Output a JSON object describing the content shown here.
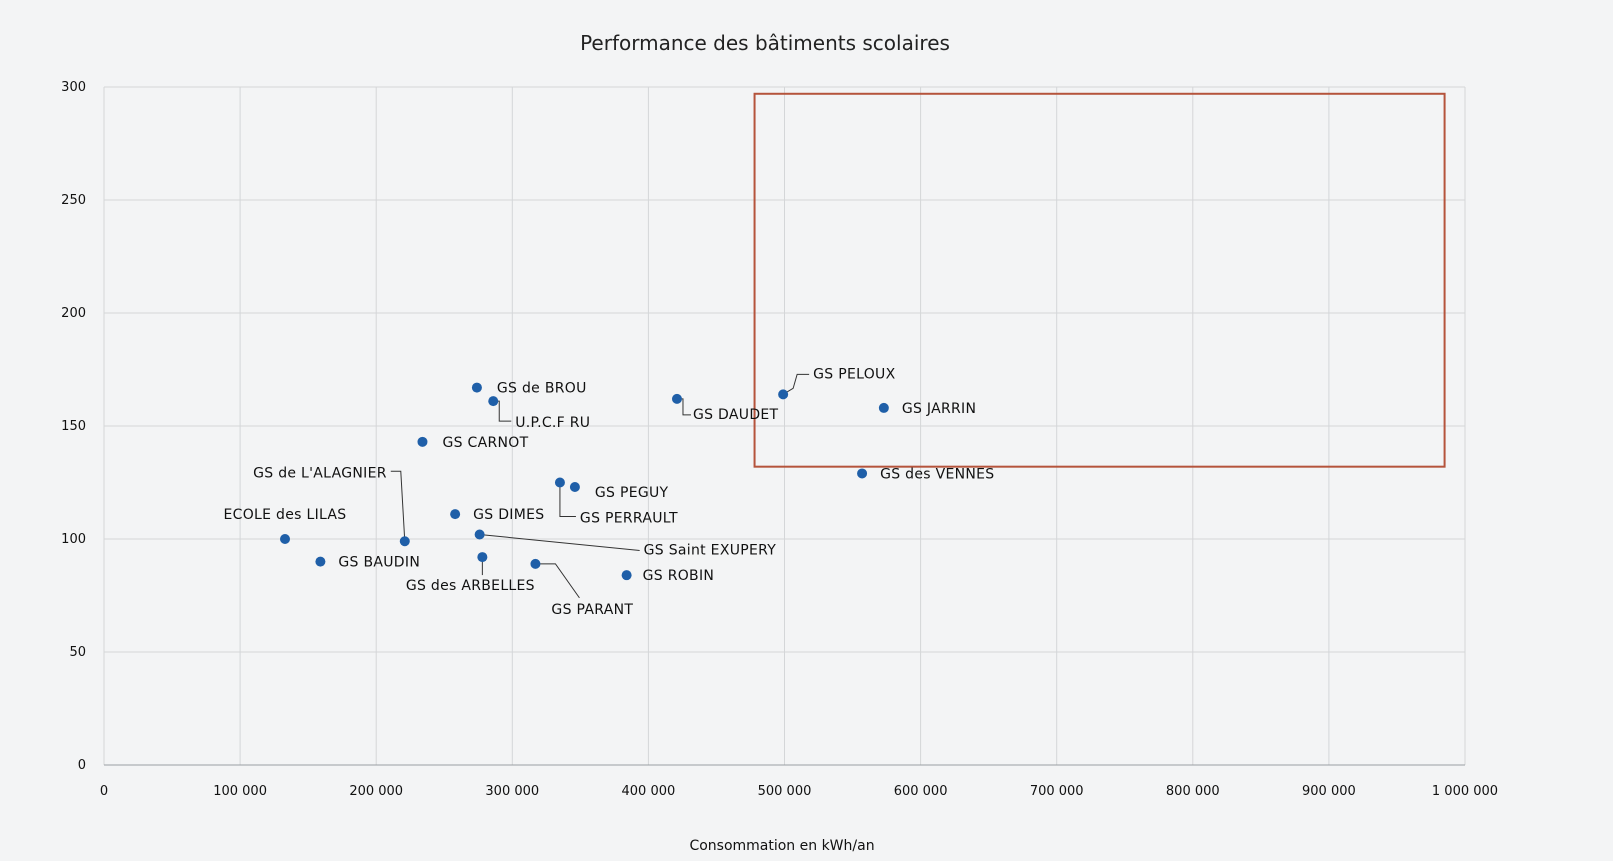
{
  "chart_data": {
    "type": "scatter",
    "title": "Performance des bâtiments scolaires",
    "xlabel": "Consommation en kWh/an",
    "ylabel": "",
    "xlim": [
      0,
      1000000
    ],
    "ylim": [
      0,
      300
    ],
    "x_ticks": [
      {
        "value": 0,
        "label": "0"
      },
      {
        "value": 100000,
        "label": "100 000"
      },
      {
        "value": 200000,
        "label": "200 000"
      },
      {
        "value": 300000,
        "label": "300 000"
      },
      {
        "value": 400000,
        "label": "400 000"
      },
      {
        "value": 500000,
        "label": "500 000"
      },
      {
        "value": 600000,
        "label": "600 000"
      },
      {
        "value": 700000,
        "label": "700 000"
      },
      {
        "value": 800000,
        "label": "800 000"
      },
      {
        "value": 900000,
        "label": "900 000"
      },
      {
        "value": 1000000,
        "label": "1 000 000"
      }
    ],
    "y_ticks": [
      {
        "value": 0,
        "label": "0"
      },
      {
        "value": 50,
        "label": "50"
      },
      {
        "value": 100,
        "label": "100"
      },
      {
        "value": 150,
        "label": "150"
      },
      {
        "value": 200,
        "label": "200"
      },
      {
        "value": 250,
        "label": "250"
      },
      {
        "value": 300,
        "label": "300"
      }
    ],
    "grid": true,
    "legend": false,
    "marker_color": "#1f5fa8",
    "highlight_box": {
      "x": [
        478000,
        985000
      ],
      "y": [
        132,
        297
      ],
      "color": "#b5543c"
    },
    "points": [
      {
        "label": "GS de BROU",
        "x": 274000,
        "y": 167
      },
      {
        "label": "U.P.C.F RU",
        "x": 286000,
        "y": 161
      },
      {
        "label": "GS CARNOT",
        "x": 234000,
        "y": 143
      },
      {
        "label": "GS DAUDET",
        "x": 421000,
        "y": 162
      },
      {
        "label": "GS PELOUX",
        "x": 499000,
        "y": 164
      },
      {
        "label": "GS JARRIN",
        "x": 573000,
        "y": 158
      },
      {
        "label": "GS des VENNES",
        "x": 557000,
        "y": 129
      },
      {
        "label": "GS PEGUY",
        "x": 346000,
        "y": 123
      },
      {
        "label": "GS PERRAULT",
        "x": 335000,
        "y": 125
      },
      {
        "label": "GS DIMES",
        "x": 258000,
        "y": 111
      },
      {
        "label": "GS de L'ALAGNIER",
        "x": 221000,
        "y": 99
      },
      {
        "label": "ECOLE des LILAS",
        "x": 133000,
        "y": 100
      },
      {
        "label": "GS BAUDIN",
        "x": 159000,
        "y": 90
      },
      {
        "label": "GS Saint EXUPERY",
        "x": 276000,
        "y": 102
      },
      {
        "label": "GS des ARBELLES",
        "x": 278000,
        "y": 92
      },
      {
        "label": "GS PARANT",
        "x": 317000,
        "y": 89
      },
      {
        "label": "GS ROBIN",
        "x": 384000,
        "y": 84
      }
    ]
  }
}
